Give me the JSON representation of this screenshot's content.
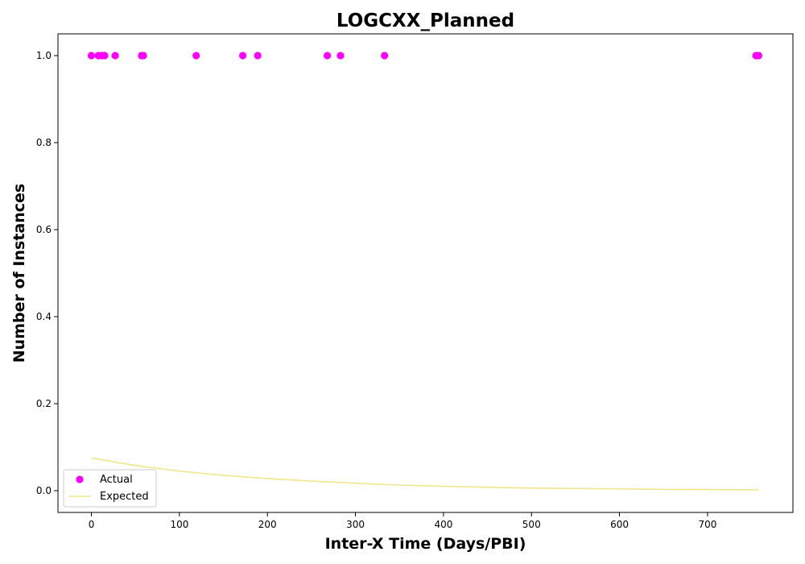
{
  "chart_data": {
    "type": "scatter",
    "title": "LOGCXX_Planned",
    "xlabel": "Inter-X Time (Days/PBI)",
    "ylabel": "Number of Instances",
    "xlim": [
      -38,
      797
    ],
    "ylim": [
      -0.05,
      1.05
    ],
    "xticks": [
      0,
      100,
      200,
      300,
      400,
      500,
      600,
      700
    ],
    "yticks": [
      0.0,
      0.2,
      0.4,
      0.6,
      0.8,
      1.0
    ],
    "grid": false,
    "legend_position": "lower-left",
    "series": [
      {
        "name": "Actual",
        "kind": "scatter",
        "color": "#ff00ff",
        "x": [
          0,
          8,
          12,
          15,
          27,
          57,
          59,
          119,
          172,
          189,
          268,
          283,
          333,
          755,
          758
        ],
        "y": [
          1,
          1,
          1,
          1,
          1,
          1,
          1,
          1,
          1,
          1,
          1,
          1,
          1,
          1,
          1
        ]
      },
      {
        "name": "Expected",
        "kind": "line",
        "color": "#f0e68c",
        "x": [
          0,
          50,
          100,
          150,
          200,
          250,
          300,
          350,
          400,
          450,
          500,
          550,
          600,
          650,
          700,
          758
        ],
        "y": [
          0.075,
          0.058,
          0.045,
          0.035,
          0.028,
          0.022,
          0.017,
          0.013,
          0.01,
          0.008,
          0.006,
          0.005,
          0.004,
          0.003,
          0.0025,
          0.002
        ]
      }
    ]
  }
}
